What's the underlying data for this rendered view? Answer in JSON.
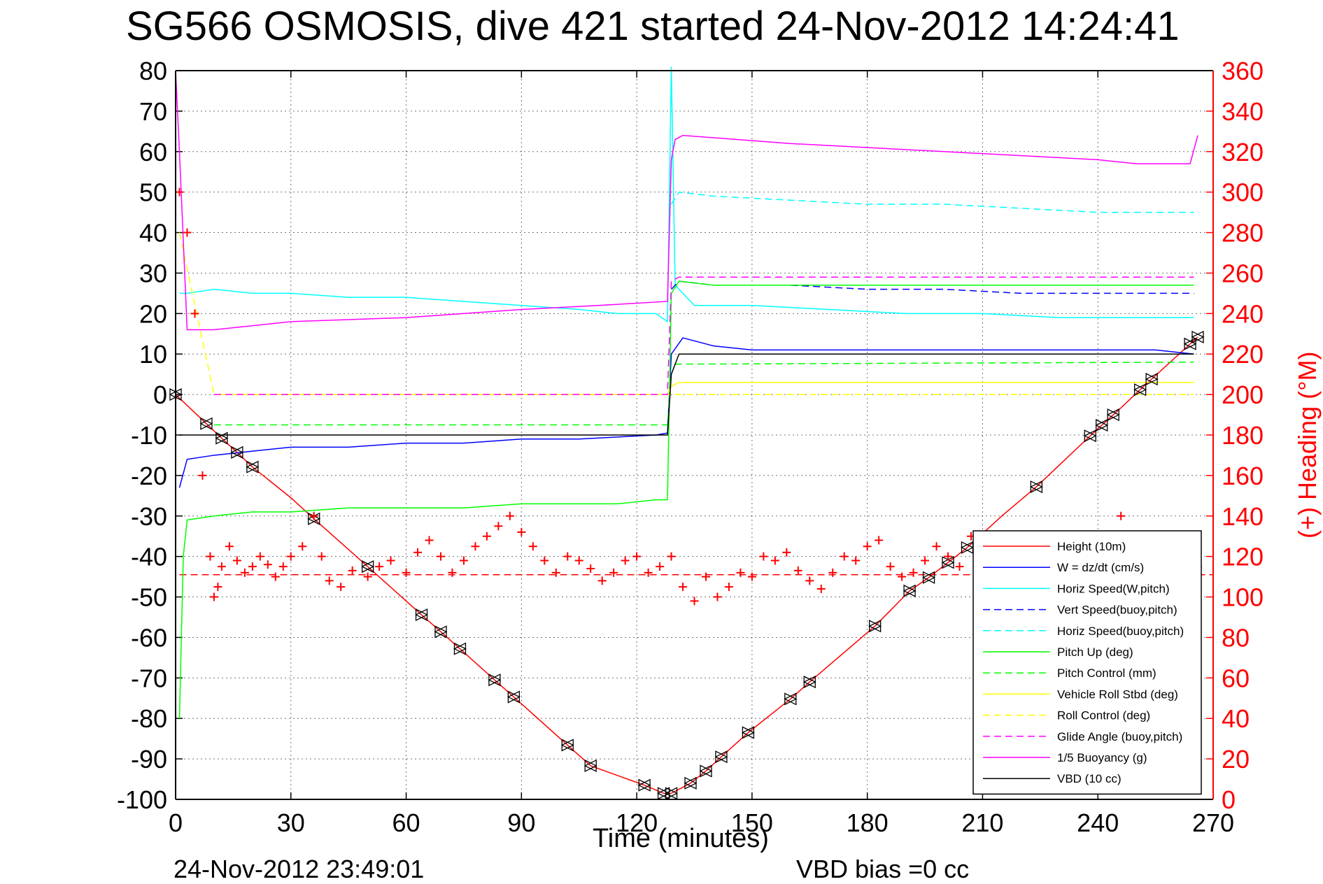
{
  "chart_data": {
    "type": "line",
    "title": "SG566 OSMOSIS, dive 421 started 24-Nov-2012 14:24:41",
    "xlabel": "Time (minutes)",
    "ylabel": "",
    "ylabel_right": "(+) Heading (°M)",
    "xlim": [
      0,
      270
    ],
    "ylim": [
      -100,
      80
    ],
    "ylim_right": [
      0,
      360
    ],
    "x_ticks": [
      "0",
      "30",
      "60",
      "90",
      "120",
      "150",
      "180",
      "210",
      "240",
      "270"
    ],
    "y_ticks": [
      "-100",
      "-90",
      "-80",
      "-70",
      "-60",
      "-50",
      "-40",
      "-30",
      "-20",
      "-10",
      "0",
      "10",
      "20",
      "30",
      "40",
      "50",
      "60",
      "70",
      "80"
    ],
    "y_ticks_right": [
      "0",
      "20",
      "40",
      "60",
      "80",
      "100",
      "120",
      "140",
      "160",
      "180",
      "200",
      "220",
      "240",
      "260",
      "280",
      "300",
      "320",
      "340",
      "360"
    ],
    "grid": true,
    "legend_position": "bottom-right",
    "footer_left": "24-Nov-2012 23:49:01",
    "footer_right": "VBD bias =0 cc",
    "series": [
      {
        "name": "Height (10m)",
        "color": "#ff0000",
        "dash": "solid",
        "x": [
          0,
          4,
          8,
          12,
          16,
          20,
          30,
          36,
          50,
          64,
          69,
          74,
          83,
          88,
          102,
          108,
          122,
          127,
          128,
          129,
          134,
          138,
          142,
          149,
          160,
          165,
          182,
          191,
          196,
          201,
          206,
          215,
          224,
          238,
          241,
          244,
          246,
          251,
          254,
          264,
          266
        ],
        "y": [
          0,
          -3.6,
          -7.2,
          -10.8,
          -14.3,
          -17.9,
          -25.5,
          -30.7,
          -42.5,
          -54.4,
          -58.6,
          -62.8,
          -70.5,
          -74.7,
          -86.6,
          -91.7,
          -96.5,
          -98.5,
          -98.6,
          -98.5,
          -96,
          -93,
          -89.5,
          -83.5,
          -75.2,
          -71,
          -57.2,
          -48.5,
          -45.2,
          -41.5,
          -37.8,
          -30,
          -22.8,
          -10.2,
          -7.6,
          -5,
          -3.3,
          1.2,
          3.8,
          12.5,
          14.2
        ],
        "markers_x": [
          0,
          8,
          12,
          16,
          20,
          36,
          50,
          64,
          69,
          74,
          83,
          88,
          102,
          108,
          122,
          127,
          129,
          134,
          138,
          142,
          149,
          160,
          165,
          182,
          191,
          196,
          201,
          206,
          224,
          238,
          241,
          244,
          251,
          254,
          264,
          266
        ]
      },
      {
        "name": "W = dz/dt (cm/s)",
        "color": "#0000ff",
        "dash": "solid",
        "x": [
          1,
          3,
          10,
          20,
          30,
          45,
          60,
          75,
          90,
          105,
          115,
          125,
          128,
          129,
          132,
          140,
          150,
          160,
          180,
          200,
          220,
          240,
          255,
          265
        ],
        "y": [
          -23,
          -16,
          -15,
          -14,
          -13,
          -13,
          -12,
          -12,
          -11,
          -11,
          -10.5,
          -10,
          -9.5,
          10,
          14,
          12,
          11,
          11,
          11,
          11,
          11,
          11,
          11,
          10
        ]
      },
      {
        "name": "Horiz Speed(W,pitch)",
        "color": "#00ffff",
        "dash": "solid",
        "x": [
          1,
          3,
          10,
          20,
          30,
          45,
          60,
          75,
          90,
          105,
          115,
          125,
          128,
          129,
          130,
          135,
          150,
          170,
          190,
          210,
          230,
          250,
          265
        ],
        "y": [
          25,
          25,
          26,
          25,
          25,
          24,
          24,
          23,
          22,
          21,
          20,
          20,
          18,
          81,
          27,
          22,
          22,
          21,
          20,
          20,
          19,
          19,
          19
        ]
      },
      {
        "name": "Vert Speed(buoy,pitch)",
        "color": "#0000ff",
        "dash": "dashed",
        "x": [
          129,
          131,
          140,
          160,
          180,
          200,
          220,
          240,
          255,
          265
        ],
        "y": [
          26,
          28,
          27,
          27,
          26,
          26,
          25,
          25,
          25,
          25
        ]
      },
      {
        "name": "Horiz Speed(buoy,pitch)",
        "color": "#00ffff",
        "dash": "dashed",
        "x": [
          129,
          131,
          140,
          160,
          180,
          200,
          220,
          240,
          255,
          265
        ],
        "y": [
          47,
          50,
          49,
          48,
          47,
          47,
          46,
          45,
          45,
          45
        ]
      },
      {
        "name": "Pitch Up (deg)",
        "color": "#00ff00",
        "dash": "solid",
        "x": [
          1,
          2,
          3,
          10,
          20,
          30,
          45,
          60,
          75,
          90,
          105,
          115,
          125,
          128,
          129,
          131,
          140,
          160,
          180,
          200,
          220,
          240,
          255,
          265
        ],
        "y": [
          -80,
          -40,
          -31,
          -30,
          -29,
          -29,
          -28,
          -28,
          -28,
          -27,
          -27,
          -27,
          -26,
          -26,
          25,
          28,
          27,
          27,
          27,
          27,
          27,
          27,
          27,
          27
        ]
      },
      {
        "name": "Pitch Control (mm)",
        "color": "#00ff00",
        "dash": "dashed",
        "x": [
          10,
          128,
          129,
          130,
          265
        ],
        "y": [
          -7.5,
          -7.5,
          5,
          7.5,
          8
        ]
      },
      {
        "name": "Vehicle Roll Stbd (deg)",
        "color": "#ffff00",
        "dash": "solid",
        "x": [
          10,
          128,
          129,
          131,
          265
        ],
        "y": [
          0,
          0,
          2,
          3,
          3
        ]
      },
      {
        "name": "Roll Control (deg)",
        "color": "#ffff00",
        "dash": "dashed",
        "x": [
          1,
          10,
          128,
          265
        ],
        "y": [
          40,
          0,
          0,
          0
        ]
      },
      {
        "name": "Glide Angle (buoy,pitch)",
        "color": "#ff00ff",
        "dash": "dashed",
        "x": [
          10,
          128,
          129,
          131,
          265
        ],
        "y": [
          0,
          0,
          28,
          29,
          29
        ]
      },
      {
        "name": "1/5 Buoyancy (g)",
        "color": "#ff00ff",
        "dash": "solid",
        "x": [
          0,
          1,
          3,
          10,
          30,
          60,
          90,
          110,
          128,
          129,
          130,
          132,
          160,
          200,
          240,
          250,
          264,
          266
        ],
        "y": [
          80,
          60,
          16,
          16,
          18,
          19,
          21,
          22,
          23,
          58,
          63,
          64,
          62,
          60,
          58,
          57,
          57,
          64
        ]
      },
      {
        "name": "VBD (10 cc)",
        "color": "#000000",
        "dash": "solid",
        "x": [
          1,
          10,
          128,
          129,
          131,
          265
        ],
        "y": [
          -10,
          -10,
          -10,
          5,
          10,
          10
        ]
      }
    ],
    "heading_series": {
      "name": "Heading",
      "color": "#ff0000",
      "marker": "+",
      "axis": "right",
      "target_line": {
        "value": 111,
        "color": "#ff0000",
        "dash": "dashed"
      },
      "x": [
        1,
        3,
        5,
        7,
        9,
        10,
        11,
        12,
        14,
        16,
        18,
        20,
        22,
        24,
        26,
        28,
        30,
        33,
        36,
        38,
        40,
        43,
        46,
        50,
        53,
        56,
        60,
        63,
        66,
        69,
        72,
        75,
        78,
        81,
        84,
        87,
        90,
        93,
        96,
        99,
        102,
        105,
        108,
        111,
        114,
        117,
        120,
        123,
        126,
        129,
        132,
        135,
        138,
        141,
        144,
        147,
        150,
        153,
        156,
        159,
        162,
        165,
        168,
        171,
        174,
        177,
        180,
        183,
        186,
        189,
        192,
        195,
        198,
        201,
        204,
        207,
        210,
        213,
        216,
        219,
        222,
        225,
        228,
        231,
        234,
        237,
        240,
        243,
        246,
        249,
        252,
        255,
        258,
        261,
        264,
        266
      ],
      "y": [
        300,
        280,
        240,
        160,
        120,
        100,
        105,
        115,
        125,
        118,
        112,
        115,
        120,
        116,
        110,
        115,
        120,
        125,
        140,
        120,
        108,
        105,
        113,
        110,
        115,
        118,
        112,
        122,
        128,
        120,
        112,
        118,
        125,
        130,
        135,
        140,
        132,
        125,
        118,
        112,
        120,
        118,
        114,
        108,
        112,
        118,
        120,
        112,
        115,
        120,
        105,
        98,
        110,
        100,
        105,
        112,
        110,
        120,
        118,
        122,
        113,
        108,
        104,
        112,
        120,
        118,
        125,
        128,
        115,
        110,
        112,
        118,
        125,
        120,
        115,
        130,
        128,
        120,
        112,
        120,
        115,
        112,
        108,
        118,
        122,
        115,
        125,
        130,
        140,
        115,
        120,
        110,
        105,
        112,
        118,
        115
      ]
    }
  }
}
